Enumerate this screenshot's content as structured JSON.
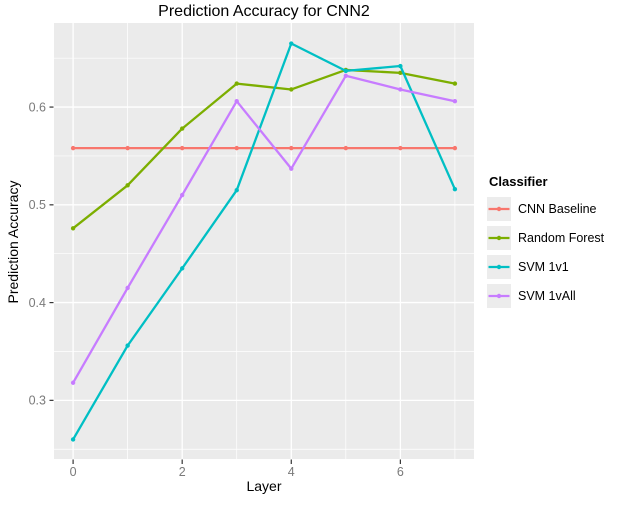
{
  "title": "Prediction Accuracy for CNN2",
  "chart_data": {
    "type": "line",
    "title": "Prediction Accuracy for CNN2",
    "xlabel": "Layer",
    "ylabel": "Prediction Accuracy",
    "x": [
      0,
      1,
      2,
      3,
      4,
      5,
      6,
      7
    ],
    "xlim": [
      -0.35,
      7.35
    ],
    "ylim": [
      0.24,
      0.686
    ],
    "x_ticks": {
      "values": [
        0,
        2,
        4,
        6
      ],
      "labels": [
        "0",
        "2",
        "4",
        "6"
      ]
    },
    "x_minor_ticks": [
      1,
      3,
      5,
      7
    ],
    "y_ticks": {
      "values": [
        0.3,
        0.4,
        0.5,
        0.6
      ],
      "labels": [
        "0.3",
        "0.4",
        "0.5",
        "0.6"
      ]
    },
    "y_minor_ticks": [
      0.25,
      0.35,
      0.45,
      0.55,
      0.65
    ],
    "grid": "on",
    "legend": {
      "title": "Classifier",
      "position": "right"
    },
    "series": [
      {
        "name": "CNN Baseline",
        "color": "#F8766D",
        "values": [
          0.558,
          0.558,
          0.558,
          0.558,
          0.558,
          0.558,
          0.558,
          0.558
        ]
      },
      {
        "name": "Random Forest",
        "color": "#7CAE00",
        "values": [
          0.476,
          0.52,
          0.578,
          0.624,
          0.618,
          0.638,
          0.635,
          0.624
        ]
      },
      {
        "name": "SVM 1v1",
        "color": "#00BFC4",
        "values": [
          0.26,
          0.356,
          0.435,
          0.515,
          0.665,
          0.637,
          0.642,
          0.516
        ]
      },
      {
        "name": "SVM 1vAll",
        "color": "#C77CFF",
        "values": [
          0.318,
          0.415,
          0.51,
          0.606,
          0.537,
          0.632,
          0.618,
          0.606
        ]
      }
    ],
    "panel_bg": "#EBEBEB",
    "grid_color": "#FFFFFF",
    "tick_label_color": "#7A7A7A",
    "tick_mark_color": "#333333"
  }
}
